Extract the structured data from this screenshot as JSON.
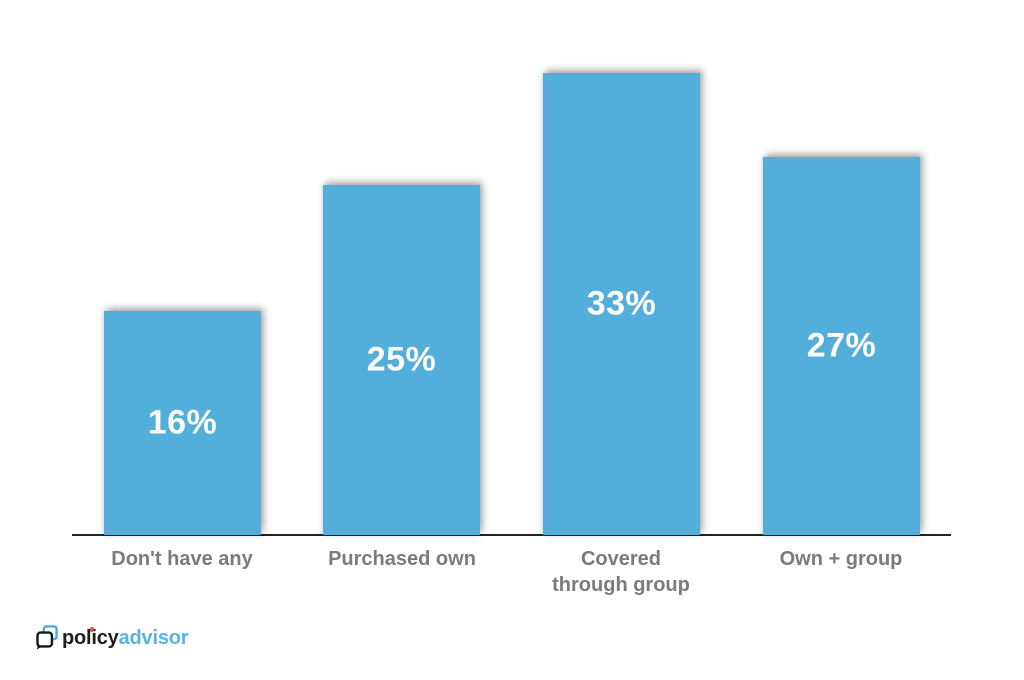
{
  "page": {
    "background_color": "#ffffff"
  },
  "chart_data": {
    "type": "bar",
    "title": "",
    "xlabel": "",
    "ylabel": "",
    "categories": [
      "Don't have any",
      "Purchased own",
      "Covered through group",
      "Own + group"
    ],
    "category_display": [
      "Don't have any",
      "Purchased own",
      "Covered\nthrough group",
      "Own + group"
    ],
    "values": [
      16,
      25,
      33,
      27
    ],
    "value_labels": [
      "16%",
      "25%",
      "33%",
      "27%"
    ],
    "unit": "%",
    "ylim": [
      0,
      35
    ],
    "grid": false,
    "legend": false,
    "y_axis_visible": false,
    "x_axis_visible": true,
    "bar_color": "#54AEDC",
    "value_label_color": "#ffffff",
    "category_label_color": "#7b7b7b",
    "axis_line_color": "#222222"
  },
  "logo": {
    "icon": "policyadvisor-speech-bubbles-icon",
    "black_text": "policy",
    "blue_text": "advisor",
    "black_color": "#1d1d1b",
    "blue_color": "#58B2E6",
    "icon_blue": "#45AAE8",
    "icon_black": "#161616",
    "i_dot_color": "#E2574C"
  }
}
